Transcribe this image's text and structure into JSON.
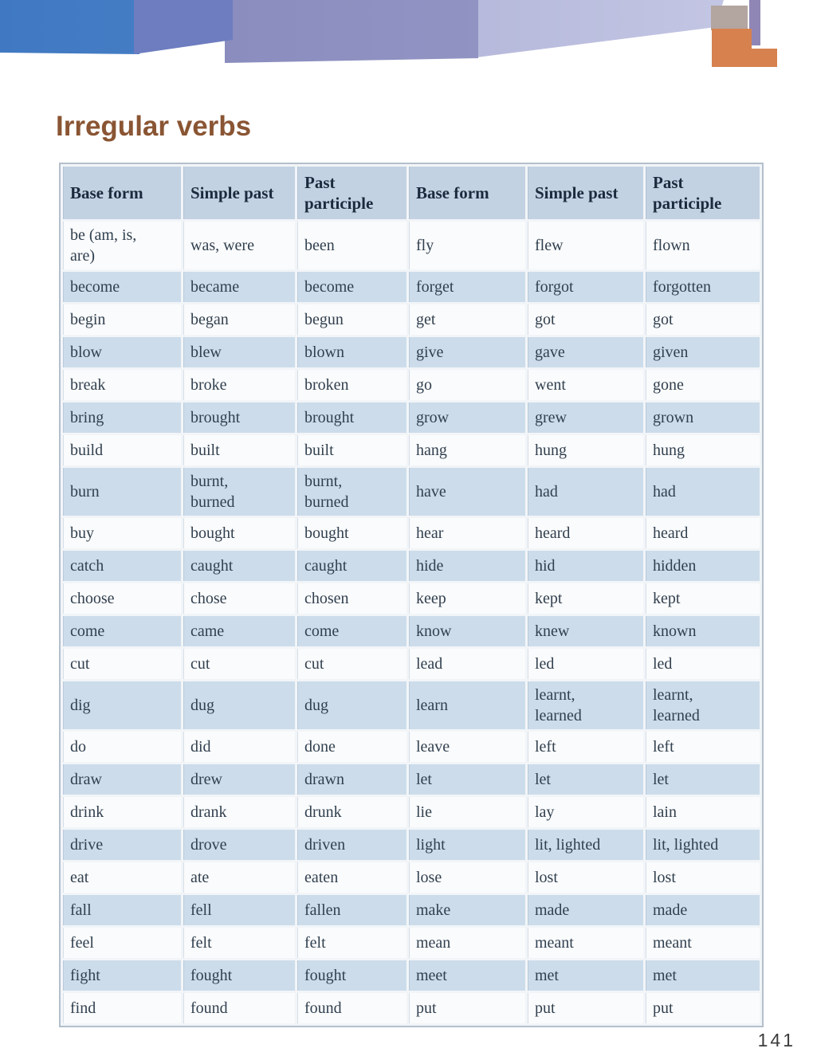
{
  "page": {
    "title": "Irregular verbs",
    "page_number": "141"
  },
  "colors": {
    "title_brown": "#8a5533",
    "header_cell_blue": "#c3d2e2",
    "row_blue": "#ccdcea",
    "row_white": "#fafbfc",
    "banner_blue": "#4079c2",
    "banner_indigo": "#6d7dbf",
    "banner_purple": "#8e90c0",
    "banner_lavender": "#c2c5e3",
    "banner_orange": "#d6814e",
    "banner_tan": "#b3a5a0"
  },
  "table": {
    "headers": [
      "Base form",
      "Simple past",
      "Past\nparticiple",
      "Base form",
      "Simple past",
      "Past\nparticiple"
    ],
    "rows": [
      [
        "be (am, is,\nare)",
        "was, were",
        "been",
        "fly",
        "flew",
        "flown"
      ],
      [
        "become",
        "became",
        "become",
        "forget",
        "forgot",
        "forgotten"
      ],
      [
        "begin",
        "began",
        "begun",
        "get",
        "got",
        "got"
      ],
      [
        "blow",
        "blew",
        "blown",
        "give",
        "gave",
        "given"
      ],
      [
        "break",
        "broke",
        "broken",
        "go",
        "went",
        "gone"
      ],
      [
        "bring",
        "brought",
        "brought",
        "grow",
        "grew",
        "grown"
      ],
      [
        "build",
        "built",
        "built",
        "hang",
        "hung",
        "hung"
      ],
      [
        "burn",
        "burnt,\nburned",
        "burnt,\nburned",
        "have",
        "had",
        "had"
      ],
      [
        "buy",
        "bought",
        "bought",
        "hear",
        "heard",
        "heard"
      ],
      [
        "catch",
        "caught",
        "caught",
        "hide",
        "hid",
        "hidden"
      ],
      [
        "choose",
        "chose",
        "chosen",
        "keep",
        "kept",
        "kept"
      ],
      [
        "come",
        "came",
        "come",
        "know",
        "knew",
        "known"
      ],
      [
        "cut",
        "cut",
        "cut",
        "lead",
        "led",
        "led"
      ],
      [
        "dig",
        "dug",
        "dug",
        "learn",
        "learnt,\nlearned",
        "learnt,\nlearned"
      ],
      [
        "do",
        "did",
        "done",
        "leave",
        "left",
        "left"
      ],
      [
        "draw",
        "drew",
        "drawn",
        "let",
        "let",
        "let"
      ],
      [
        "drink",
        "drank",
        "drunk",
        "lie",
        "lay",
        "lain"
      ],
      [
        "drive",
        "drove",
        "driven",
        "light",
        "lit, lighted",
        "lit, lighted"
      ],
      [
        "eat",
        "ate",
        "eaten",
        "lose",
        "lost",
        "lost"
      ],
      [
        "fall",
        "fell",
        "fallen",
        "make",
        "made",
        "made"
      ],
      [
        "feel",
        "felt",
        "felt",
        "mean",
        "meant",
        "meant"
      ],
      [
        "fight",
        "fought",
        "fought",
        "meet",
        "met",
        "met"
      ],
      [
        "find",
        "found",
        "found",
        "put",
        "put",
        "put"
      ]
    ]
  }
}
